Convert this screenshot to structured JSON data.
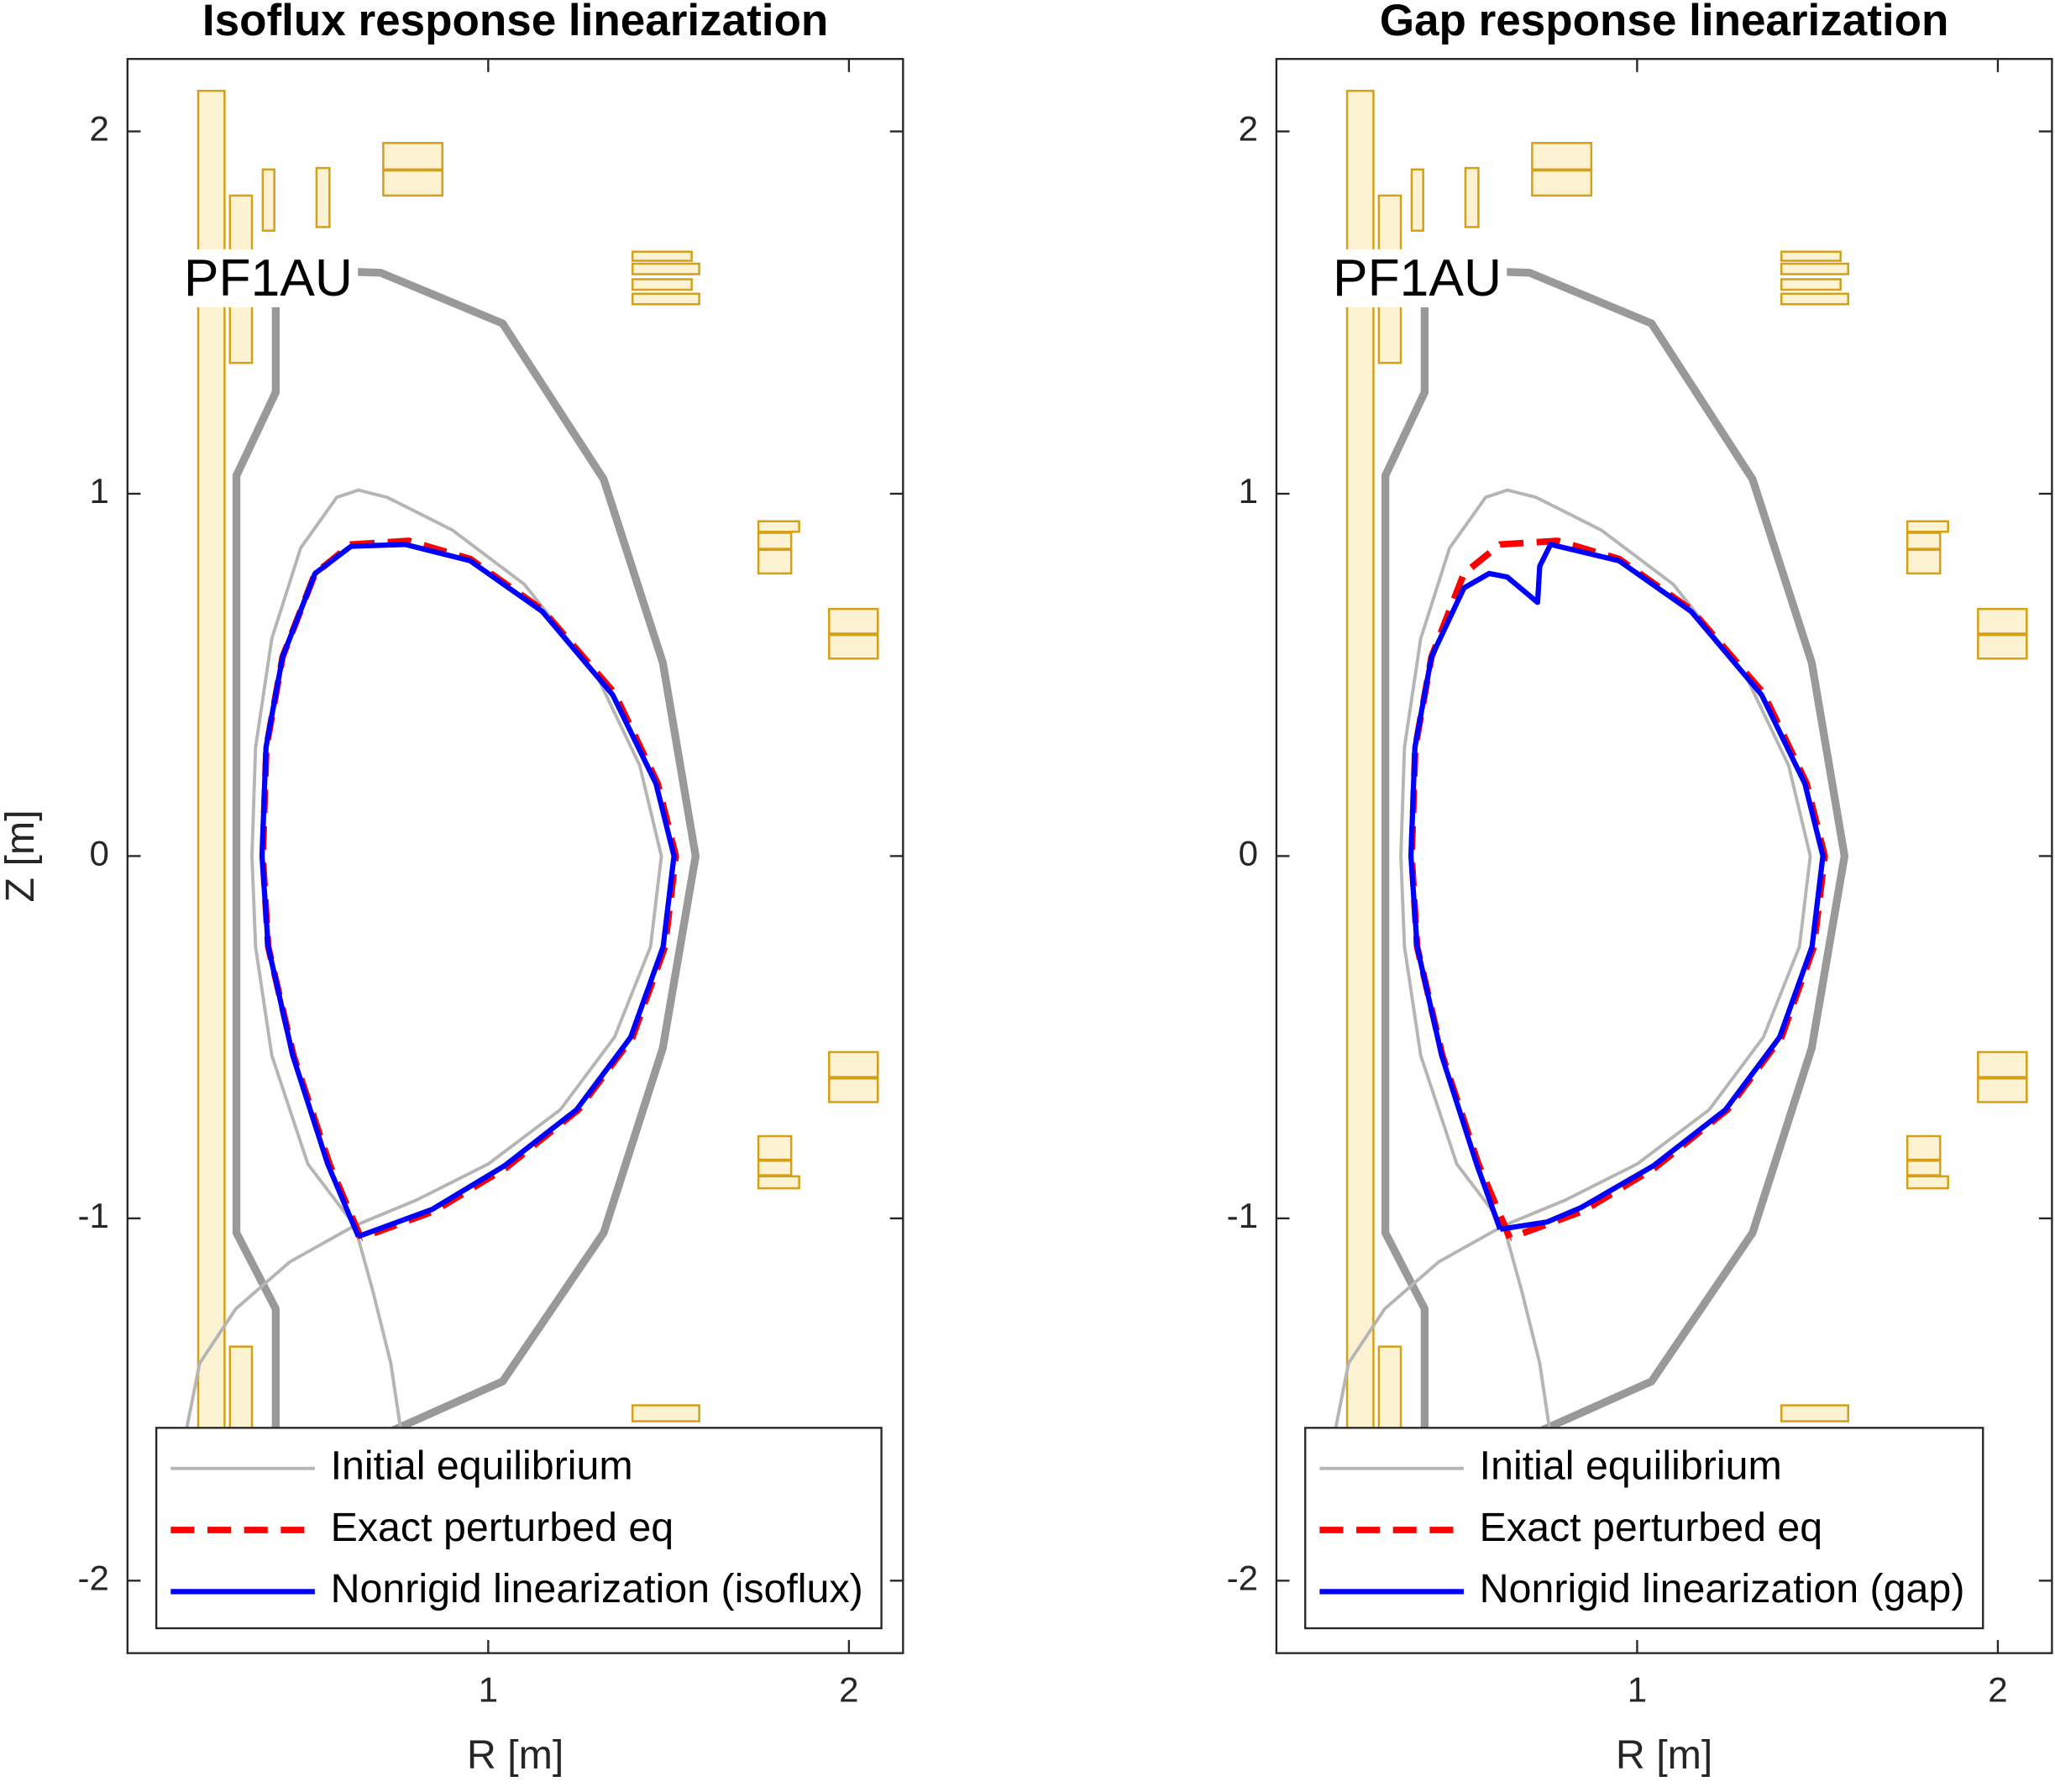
{
  "chart_data": [
    {
      "type": "line",
      "title": "Isoflux response linearization",
      "xlabel": "R [m]",
      "ylabel": "Z [m]",
      "annotation": "PF1AU",
      "xlim": [
        0,
        2.15
      ],
      "ylim": [
        -2.2,
        2.2
      ],
      "xticks": [
        1,
        2
      ],
      "yticks": [
        -2,
        -1,
        0,
        1,
        2
      ],
      "legend": "lower left",
      "coil_color": "#d4a017",
      "coil_fill": "#fdf3d2",
      "coils": [
        {
          "r": [
            0.196,
            0.269
          ],
          "z": [
            -2.105,
            2.112
          ]
        },
        {
          "r": [
            0.284,
            0.345
          ],
          "z": [
            1.361,
            1.823
          ]
        },
        {
          "r": [
            0.375,
            0.407
          ],
          "z": [
            1.726,
            1.895
          ]
        },
        {
          "r": [
            0.524,
            0.56
          ],
          "z": [
            1.736,
            1.899
          ]
        },
        {
          "r": [
            0.709,
            0.873
          ],
          "z": [
            1.895,
            1.968
          ]
        },
        {
          "r": [
            0.709,
            0.873
          ],
          "z": [
            1.823,
            1.892
          ]
        },
        {
          "r": [
            1.4,
            1.564
          ],
          "z": [
            1.643,
            1.668
          ]
        },
        {
          "r": [
            1.4,
            1.585
          ],
          "z": [
            1.606,
            1.635
          ]
        },
        {
          "r": [
            1.4,
            1.564
          ],
          "z": [
            1.563,
            1.592
          ]
        },
        {
          "r": [
            1.4,
            1.585
          ],
          "z": [
            1.523,
            1.552
          ]
        },
        {
          "r": [
            1.749,
            1.862
          ],
          "z": [
            0.895,
            0.924
          ]
        },
        {
          "r": [
            1.749,
            1.84
          ],
          "z": [
            0.848,
            0.892
          ]
        },
        {
          "r": [
            1.749,
            1.84
          ],
          "z": [
            0.78,
            0.845
          ]
        },
        {
          "r": [
            1.945,
            2.08
          ],
          "z": [
            0.614,
            0.682
          ]
        },
        {
          "r": [
            1.945,
            2.08
          ],
          "z": [
            0.545,
            0.61
          ]
        },
        {
          "r": [
            1.945,
            2.08
          ],
          "z": [
            -0.61,
            -0.541
          ]
        },
        {
          "r": [
            1.945,
            2.08
          ],
          "z": [
            -0.679,
            -0.614
          ]
        },
        {
          "r": [
            1.749,
            1.84
          ],
          "z": [
            -0.838,
            -0.773
          ]
        },
        {
          "r": [
            1.749,
            1.84
          ],
          "z": [
            -0.881,
            -0.841
          ]
        },
        {
          "r": [
            1.749,
            1.862
          ],
          "z": [
            -0.917,
            -0.884
          ]
        },
        {
          "r": [
            1.4,
            1.585
          ],
          "z": [
            -1.56,
            -1.516
          ]
        },
        {
          "r": [
            0.284,
            0.345
          ],
          "z": [
            -1.58,
            -1.354
          ]
        }
      ],
      "series": [
        {
          "color": "#999999",
          "width": 6,
          "x": [
            0.411,
            0.411,
            0.302,
            0.302,
            0.411,
            0.411,
            0.702,
            1.04,
            1.32,
            1.484,
            1.575,
            1.484,
            1.32,
            1.04,
            0.702
          ],
          "y": [
            -1.6,
            -1.25,
            -1.04,
            1.05,
            1.28,
            1.62,
            1.61,
            1.47,
            1.04,
            0.534,
            0,
            -0.53,
            -1.04,
            -1.45,
            -1.6
          ]
        },
        {
          "name": "Initial equilibrium",
          "color": "#b5b5b5",
          "width": 2.5,
          "x": [
            0.63,
            0.5,
            0.4,
            0.355,
            0.345,
            0.355,
            0.4,
            0.48,
            0.58,
            0.64,
            0.72,
            0.9,
            1.1,
            1.3,
            1.42,
            1.48,
            1.45,
            1.35,
            1.2,
            1.0,
            0.8,
            0.63,
            null,
            0.63,
            0.45,
            0.3,
            0.2,
            0.16,
            null,
            0.63,
            0.68,
            0.73,
            0.76
          ],
          "y": [
            -1.02,
            -0.85,
            -0.55,
            -0.25,
            0,
            0.3,
            0.6,
            0.85,
            0.99,
            1.01,
            0.99,
            0.9,
            0.75,
            0.5,
            0.25,
            0,
            -0.25,
            -0.5,
            -0.7,
            -0.85,
            -0.95,
            -1.02,
            null,
            -1.02,
            -1.12,
            -1.25,
            -1.4,
            -1.6,
            null,
            -1.02,
            -1.2,
            -1.4,
            -1.6
          ]
        },
        {
          "name": "Exact perturbed eq",
          "color": "#ff0000",
          "width": 5,
          "dashed": true,
          "x": [
            0.647,
            0.56,
            0.46,
            0.39,
            0.375,
            0.385,
            0.43,
            0.52,
            0.62,
            0.78,
            0.95,
            1.15,
            1.35,
            1.47,
            1.52,
            1.49,
            1.4,
            1.25,
            1.05,
            0.85,
            0.647
          ],
          "y": [
            -1.054,
            -0.85,
            -0.55,
            -0.25,
            0,
            0.3,
            0.55,
            0.78,
            0.86,
            0.87,
            0.82,
            0.68,
            0.45,
            0.2,
            0,
            -0.25,
            -0.5,
            -0.7,
            -0.86,
            -0.98,
            -1.054
          ]
        },
        {
          "name": "Nonrigid linearization (isoflux)",
          "color": "#0000ff",
          "width": 4,
          "x": [
            0.64,
            0.555,
            0.458,
            0.39,
            0.373,
            0.384,
            0.43,
            0.52,
            0.62,
            0.77,
            0.95,
            1.15,
            1.345,
            1.465,
            1.515,
            1.485,
            1.395,
            1.245,
            1.045,
            0.845,
            0.64
          ],
          "y": [
            -1.05,
            -0.85,
            -0.55,
            -0.25,
            0,
            0.3,
            0.55,
            0.78,
            0.855,
            0.86,
            0.815,
            0.675,
            0.445,
            0.2,
            0,
            -0.25,
            -0.5,
            -0.7,
            -0.855,
            -0.975,
            -1.05
          ]
        }
      ]
    },
    {
      "type": "line",
      "title": "Gap response linearization",
      "xlabel": "R [m]",
      "annotation": "PF1AU",
      "xlim": [
        0,
        2.15
      ],
      "ylim": [
        -2.2,
        2.2
      ],
      "xticks": [
        1,
        2
      ],
      "yticks": [
        -2,
        -1,
        0,
        1,
        2
      ],
      "legend": "lower left",
      "coil_color": "#d4a017",
      "coil_fill": "#fdf3d2",
      "coils": [
        {
          "r": [
            0.196,
            0.269
          ],
          "z": [
            -2.105,
            2.112
          ]
        },
        {
          "r": [
            0.284,
            0.345
          ],
          "z": [
            1.361,
            1.823
          ]
        },
        {
          "r": [
            0.375,
            0.407
          ],
          "z": [
            1.726,
            1.895
          ]
        },
        {
          "r": [
            0.524,
            0.56
          ],
          "z": [
            1.736,
            1.899
          ]
        },
        {
          "r": [
            0.709,
            0.873
          ],
          "z": [
            1.895,
            1.968
          ]
        },
        {
          "r": [
            0.709,
            0.873
          ],
          "z": [
            1.823,
            1.892
          ]
        },
        {
          "r": [
            1.4,
            1.564
          ],
          "z": [
            1.643,
            1.668
          ]
        },
        {
          "r": [
            1.4,
            1.585
          ],
          "z": [
            1.606,
            1.635
          ]
        },
        {
          "r": [
            1.4,
            1.564
          ],
          "z": [
            1.563,
            1.592
          ]
        },
        {
          "r": [
            1.4,
            1.585
          ],
          "z": [
            1.523,
            1.552
          ]
        },
        {
          "r": [
            1.749,
            1.862
          ],
          "z": [
            0.895,
            0.924
          ]
        },
        {
          "r": [
            1.749,
            1.84
          ],
          "z": [
            0.848,
            0.892
          ]
        },
        {
          "r": [
            1.749,
            1.84
          ],
          "z": [
            0.78,
            0.845
          ]
        },
        {
          "r": [
            1.945,
            2.08
          ],
          "z": [
            0.614,
            0.682
          ]
        },
        {
          "r": [
            1.945,
            2.08
          ],
          "z": [
            0.545,
            0.61
          ]
        },
        {
          "r": [
            1.945,
            2.08
          ],
          "z": [
            -0.61,
            -0.541
          ]
        },
        {
          "r": [
            1.945,
            2.08
          ],
          "z": [
            -0.679,
            -0.614
          ]
        },
        {
          "r": [
            1.749,
            1.84
          ],
          "z": [
            -0.838,
            -0.773
          ]
        },
        {
          "r": [
            1.749,
            1.84
          ],
          "z": [
            -0.881,
            -0.841
          ]
        },
        {
          "r": [
            1.749,
            1.862
          ],
          "z": [
            -0.917,
            -0.884
          ]
        },
        {
          "r": [
            1.4,
            1.585
          ],
          "z": [
            -1.56,
            -1.516
          ]
        },
        {
          "r": [
            0.284,
            0.345
          ],
          "z": [
            -1.58,
            -1.354
          ]
        }
      ],
      "series": [
        {
          "color": "#999999",
          "width": 6,
          "x": [
            0.411,
            0.411,
            0.302,
            0.302,
            0.411,
            0.411,
            0.702,
            1.04,
            1.32,
            1.484,
            1.575,
            1.484,
            1.32,
            1.04,
            0.702
          ],
          "y": [
            -1.6,
            -1.25,
            -1.04,
            1.05,
            1.28,
            1.62,
            1.61,
            1.47,
            1.04,
            0.534,
            0,
            -0.53,
            -1.04,
            -1.45,
            -1.6
          ]
        },
        {
          "name": "Initial equilibrium",
          "color": "#b5b5b5",
          "width": 2.5,
          "x": [
            0.63,
            0.5,
            0.4,
            0.355,
            0.345,
            0.355,
            0.4,
            0.48,
            0.58,
            0.64,
            0.72,
            0.9,
            1.1,
            1.3,
            1.42,
            1.48,
            1.45,
            1.35,
            1.2,
            1.0,
            0.8,
            0.63,
            null,
            0.63,
            0.45,
            0.3,
            0.2,
            0.16,
            null,
            0.63,
            0.68,
            0.73,
            0.76
          ],
          "y": [
            -1.02,
            -0.85,
            -0.55,
            -0.25,
            0,
            0.3,
            0.6,
            0.85,
            0.99,
            1.01,
            0.99,
            0.9,
            0.75,
            0.5,
            0.25,
            0,
            -0.25,
            -0.5,
            -0.7,
            -0.85,
            -0.95,
            -1.02,
            null,
            -1.02,
            -1.12,
            -1.25,
            -1.4,
            -1.6,
            null,
            -1.02,
            -1.2,
            -1.4,
            -1.6
          ]
        },
        {
          "name": "Exact perturbed eq",
          "color": "#ff0000",
          "width": 5,
          "dashed": true,
          "x": [
            0.647,
            0.56,
            0.46,
            0.39,
            0.375,
            0.385,
            0.43,
            0.52,
            0.62,
            0.78,
            0.95,
            1.15,
            1.35,
            1.47,
            1.52,
            1.49,
            1.4,
            1.25,
            1.05,
            0.85,
            0.647
          ],
          "y": [
            -1.054,
            -0.85,
            -0.55,
            -0.25,
            0,
            0.3,
            0.55,
            0.78,
            0.86,
            0.87,
            0.82,
            0.68,
            0.45,
            0.2,
            0,
            -0.25,
            -0.5,
            -0.7,
            -0.86,
            -0.98,
            -1.054
          ]
        },
        {
          "name": "Nonrigid linearization (gap)",
          "color": "#0000ff",
          "width": 4,
          "x": [
            0.62,
            0.555,
            0.458,
            0.39,
            0.373,
            0.384,
            0.43,
            0.52,
            0.59,
            0.64,
            0.7,
            0.724,
            0.73,
            0.76,
            0.95,
            1.15,
            1.345,
            1.465,
            1.515,
            1.485,
            1.395,
            1.245,
            1.045,
            0.845,
            0.75,
            0.62
          ],
          "y": [
            -1.03,
            -0.85,
            -0.55,
            -0.25,
            0,
            0.3,
            0.55,
            0.74,
            0.78,
            0.77,
            0.72,
            0.7,
            0.8,
            0.86,
            0.815,
            0.675,
            0.445,
            0.2,
            0,
            -0.25,
            -0.5,
            -0.7,
            -0.855,
            -0.97,
            -1.01,
            -1.03
          ]
        }
      ]
    }
  ]
}
